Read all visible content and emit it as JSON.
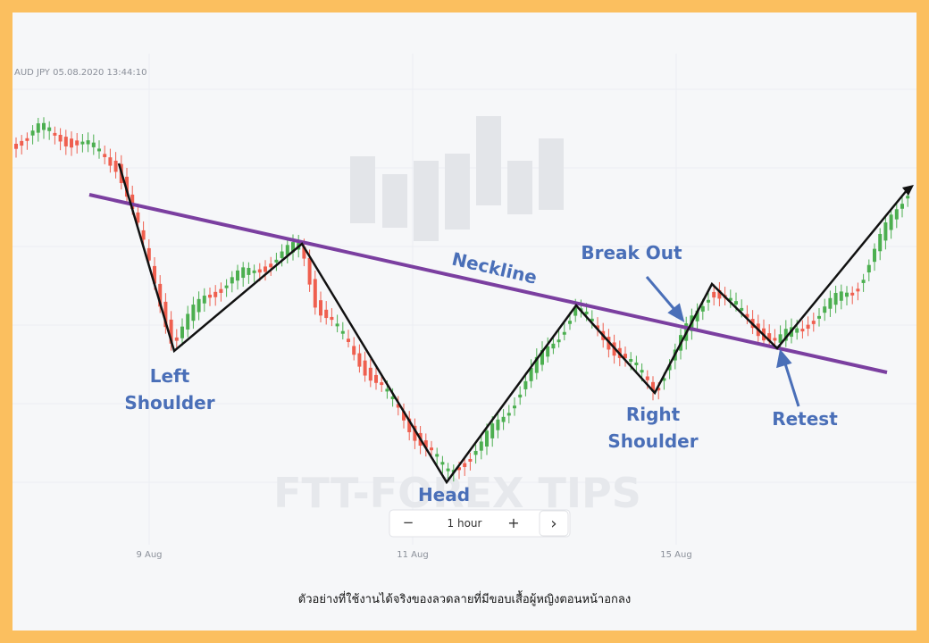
{
  "header": {
    "symbol": "AUD JPY  05.08.2020 13:44:10"
  },
  "x_axis": {
    "labels": [
      "9 Aug",
      "11 Aug",
      "15 Aug"
    ]
  },
  "annotations": {
    "left_shoulder": [
      "Left",
      "Shoulder"
    ],
    "head": "Head",
    "neckline": "Neckline",
    "break_out": "Break Out",
    "right_shoulder": [
      "Right",
      "Shoulder"
    ],
    "retest": "Retest"
  },
  "watermark": "FTT-FOREX TIPS",
  "controls": {
    "minus": "−",
    "interval": "1 hour",
    "plus": "+",
    "next": "›"
  },
  "caption": "ตัวอย่างที่ใช้งานได้จริงของลวดลายที่มีขอบเสื้อผู้หญิงตอนหน้าอกลง"
}
